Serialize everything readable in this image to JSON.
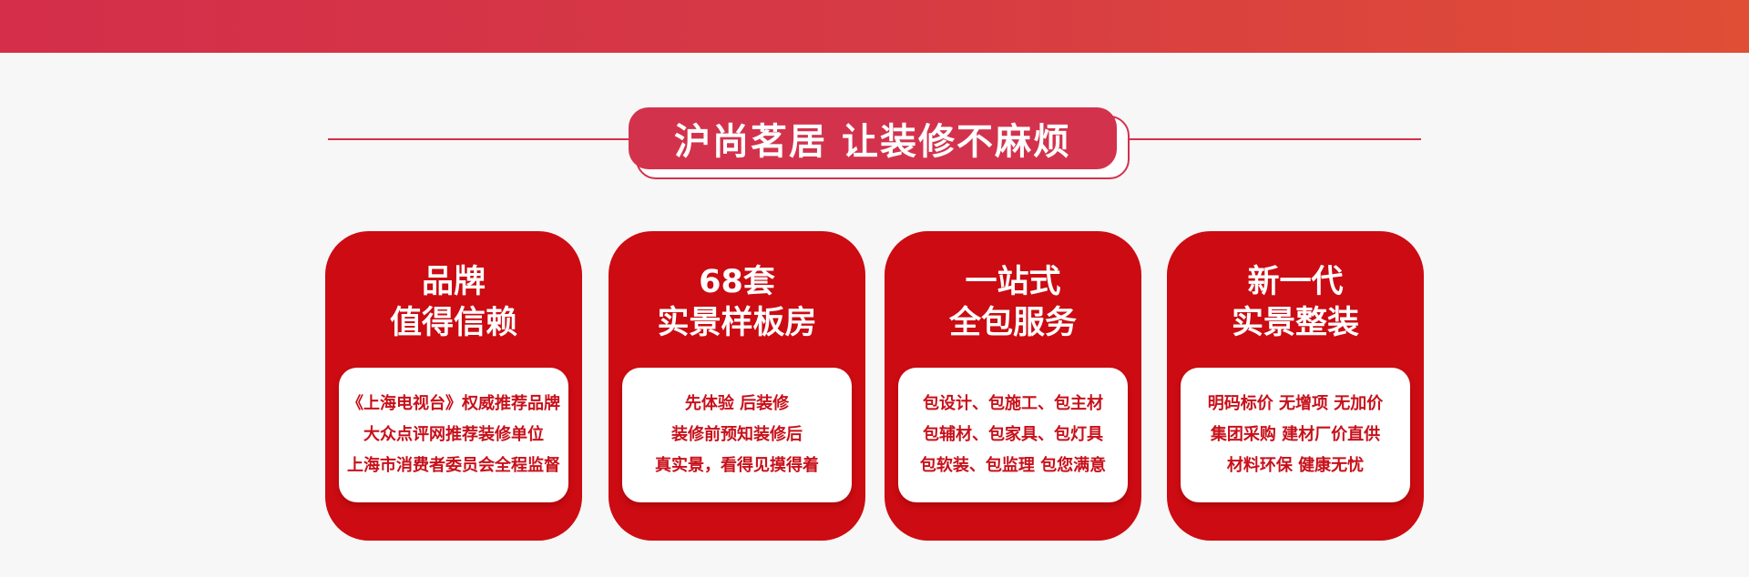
{
  "headline": "沪尚茗居 让装修不麻烦",
  "colors": {
    "brand_red": "#cc0b12",
    "headline_red": "#d3324c",
    "background": "#f7f7f7"
  },
  "cards": [
    {
      "title": [
        "品牌",
        "值得信赖"
      ],
      "lines": [
        "《上海电视台》权威推荐品牌",
        "大众点评网推荐装修单位",
        "上海市消费者委员会全程监督"
      ]
    },
    {
      "title": [
        "68套",
        "实景样板房"
      ],
      "lines": [
        "先体验 后装修",
        "装修前预知装修后",
        "真实景，看得见摸得着"
      ]
    },
    {
      "title": [
        "一站式",
        "全包服务"
      ],
      "lines": [
        "包设计、包施工、包主材",
        "包辅材、包家具、包灯具",
        "包软装、包监理 包您满意"
      ]
    },
    {
      "title": [
        "新一代",
        "实景整装"
      ],
      "lines": [
        "明码标价 无增项 无加价",
        "集团采购 建材厂价直供",
        "材料环保 健康无忧"
      ]
    }
  ]
}
